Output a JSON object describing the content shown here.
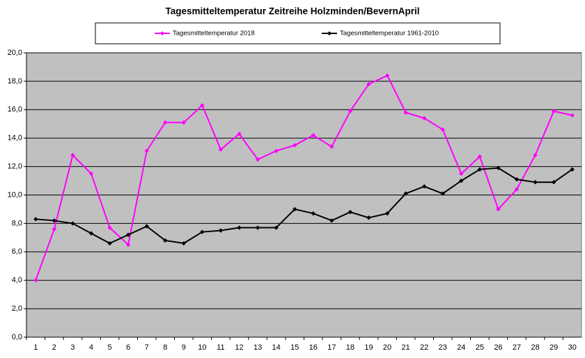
{
  "chart_data": {
    "type": "line",
    "title": "Tagesmitteltemperatur Zeitreihe Holzminden/BevernApril",
    "categories": [
      1,
      2,
      3,
      4,
      5,
      6,
      7,
      8,
      9,
      10,
      11,
      12,
      13,
      14,
      15,
      16,
      17,
      18,
      19,
      20,
      21,
      22,
      23,
      24,
      25,
      26,
      27,
      28,
      29,
      30
    ],
    "series": [
      {
        "name": "Tagesmitteltemperatur 2018",
        "color": "#ff00ff",
        "values": [
          4.0,
          7.6,
          12.8,
          11.5,
          7.7,
          6.5,
          13.1,
          15.1,
          15.1,
          16.3,
          13.2,
          14.3,
          12.5,
          13.1,
          13.5,
          14.2,
          13.4,
          15.9,
          17.8,
          18.4,
          15.8,
          15.4,
          14.6,
          11.5,
          12.7,
          9.0,
          10.4,
          12.8,
          15.9,
          15.6
        ]
      },
      {
        "name": "Tagesmitteltemperatur 1961-2010",
        "color": "#000000",
        "values": [
          8.3,
          8.2,
          8.0,
          7.3,
          6.6,
          7.2,
          7.8,
          6.8,
          6.6,
          7.4,
          7.5,
          7.7,
          7.7,
          7.7,
          9.0,
          8.7,
          8.2,
          8.8,
          8.4,
          8.7,
          10.1,
          10.6,
          10.1,
          11.0,
          11.8,
          11.9,
          11.1,
          10.9,
          10.9,
          11.8
        ]
      }
    ],
    "ylim": [
      0,
      20
    ],
    "yticks": [
      {
        "value": 0,
        "label": "0,0"
      },
      {
        "value": 2,
        "label": "2,0"
      },
      {
        "value": 4,
        "label": "4,0"
      },
      {
        "value": 6,
        "label": "6,0"
      },
      {
        "value": 8,
        "label": "8,0"
      },
      {
        "value": 10,
        "label": "10,0"
      },
      {
        "value": 12,
        "label": "12,0"
      },
      {
        "value": 14,
        "label": "14,0"
      },
      {
        "value": 16,
        "label": "16,0"
      },
      {
        "value": 18,
        "label": "18,0"
      },
      {
        "value": 20,
        "label": "20,0"
      }
    ],
    "grid": true,
    "legend": "top"
  }
}
